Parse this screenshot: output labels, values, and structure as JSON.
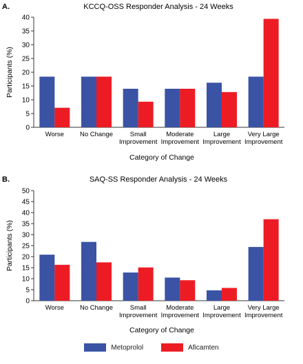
{
  "colors": {
    "metoprolol": "#3a53a4",
    "aficamten": "#ed1c24",
    "axis": "#333333"
  },
  "legend": [
    {
      "name": "Metoprolol",
      "color": "#3a53a4"
    },
    {
      "name": "Aficamten",
      "color": "#ed1c24"
    }
  ],
  "chart_data": [
    {
      "type": "bar",
      "panel_label": "A.",
      "title": "KCCQ-OSS Responder Analysis - 24 Weeks",
      "xlabel": "Category of Change",
      "ylabel": "Participants (%)",
      "ylim": [
        0,
        40
      ],
      "yticks": [
        0,
        5,
        10,
        15,
        20,
        25,
        30,
        35,
        40
      ],
      "grid": false,
      "legend_position": "bottom-center",
      "categories": [
        [
          "Worse"
        ],
        [
          "No Change"
        ],
        [
          "Small",
          "Improvement"
        ],
        [
          "Moderate",
          "Improvement"
        ],
        [
          "Large",
          "Improvement"
        ],
        [
          "Very Large",
          "Improvement"
        ]
      ],
      "series": [
        {
          "name": "Metoprolol",
          "values": [
            18.4,
            18.4,
            14.0,
            14.0,
            16.2,
            18.4
          ]
        },
        {
          "name": "Aficamten",
          "values": [
            7.1,
            18.4,
            9.3,
            14.0,
            12.8,
            39.4
          ]
        }
      ]
    },
    {
      "type": "bar",
      "panel_label": "B.",
      "title": "SAQ-SS Responder Analysis - 24 Weeks",
      "xlabel": "Category of Change",
      "ylabel": "Participants (%)",
      "ylim": [
        0,
        50
      ],
      "yticks": [
        0,
        5,
        10,
        15,
        20,
        25,
        30,
        35,
        40,
        45,
        50
      ],
      "grid": false,
      "legend_position": "bottom-center",
      "categories": [
        [
          "Worse"
        ],
        [
          "No Change"
        ],
        [
          "Small",
          "Improvement"
        ],
        [
          "Moderate",
          "Improvement"
        ],
        [
          "Large",
          "Improvement"
        ],
        [
          "Very Large",
          "Improvement"
        ]
      ],
      "series": [
        {
          "name": "Metoprolol",
          "values": [
            20.9,
            26.7,
            12.8,
            10.5,
            4.7,
            24.4
          ]
        },
        {
          "name": "Aficamten",
          "values": [
            16.3,
            17.4,
            15.1,
            9.3,
            5.8,
            37.0
          ]
        }
      ]
    }
  ]
}
